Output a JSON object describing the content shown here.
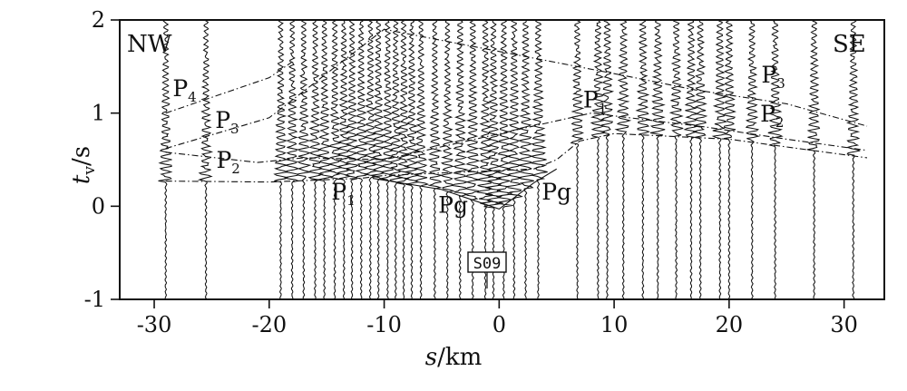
{
  "chart_data": {
    "type": "seismic-section",
    "xlabel": {
      "var": "s",
      "unit": "/km"
    },
    "ylabel": {
      "var": "t",
      "sub": "v",
      "unit": "/s"
    },
    "xlim": [
      -33,
      33.5
    ],
    "ylim": [
      -1,
      2
    ],
    "xticks": [
      -30,
      -20,
      -10,
      0,
      10,
      20,
      30
    ],
    "yticks": [
      2,
      1,
      0,
      -1
    ],
    "corner_labels": {
      "left": "NW",
      "right": "SE"
    },
    "station_label": "S09",
    "station_x": 0,
    "trace_offsets_km": [
      -29,
      -25.5,
      -19,
      -18,
      -17,
      -16,
      -15.2,
      -14.3,
      -13.5,
      -12.8,
      -12,
      -11.2,
      -10.5,
      -9.7,
      -9,
      -8.3,
      -7.6,
      -6.8,
      -5.6,
      -4.5,
      -3.4,
      -2.3,
      -1.2,
      -0.5,
      0.4,
      1.3,
      2.3,
      3.4,
      6.8,
      8.6,
      9.4,
      10.8,
      12.5,
      13.8,
      15.4,
      16.7,
      17.5,
      19.2,
      20,
      22,
      24,
      27.4,
      30.8
    ],
    "phases": [
      {
        "label": "Pg",
        "points": [
          [
            -11,
            0.3
          ],
          [
            -5,
            0.18
          ],
          [
            0,
            -0.03
          ],
          [
            3,
            0.25
          ],
          [
            5,
            0.4
          ]
        ]
      },
      {
        "label": "P1",
        "points": [
          [
            -29,
            0.27
          ],
          [
            -20,
            0.26
          ],
          [
            -12,
            0.3
          ],
          [
            -10,
            0.33
          ],
          [
            3,
            0.4
          ],
          [
            5,
            0.5
          ],
          [
            7,
            0.7
          ],
          [
            10,
            0.78
          ],
          [
            20,
            0.72
          ],
          [
            32,
            0.52
          ]
        ]
      },
      {
        "label": "P2",
        "points": [
          [
            -29,
            0.58
          ],
          [
            -21,
            0.47
          ],
          [
            -17,
            0.52
          ],
          [
            -10,
            0.5
          ],
          [
            8,
            1.0
          ],
          [
            18,
            0.85
          ],
          [
            25,
            0.72
          ],
          [
            32,
            0.6
          ]
        ]
      },
      {
        "label": "P3",
        "points": [
          [
            -29,
            0.62
          ],
          [
            -20,
            0.95
          ],
          [
            -10,
            1.9
          ],
          [
            11,
            1.4
          ],
          [
            17,
            1.25
          ],
          [
            25,
            1.1
          ],
          [
            32,
            0.86
          ]
        ]
      },
      {
        "label": "P4",
        "points": [
          [
            -29,
            1.0
          ],
          [
            -20,
            1.38
          ],
          [
            -18,
            1.55
          ]
        ]
      }
    ],
    "phase_labels": [
      {
        "text": "P",
        "sub": "4",
        "x": -28.4,
        "y": 1.18
      },
      {
        "text": "P",
        "sub": "3",
        "x": -24.7,
        "y": 0.84
      },
      {
        "text": "P",
        "sub": "2",
        "x": -24.6,
        "y": 0.41
      },
      {
        "text": "P",
        "sub": "1",
        "x": -14.6,
        "y": 0.07
      },
      {
        "text": "Pg",
        "sub": "",
        "x": -5.3,
        "y": -0.07
      },
      {
        "text": "Pg",
        "sub": "",
        "x": 3.7,
        "y": 0.07
      },
      {
        "text": "P",
        "sub": "1",
        "x": 7.3,
        "y": 1.06
      },
      {
        "text": "P",
        "sub": "3",
        "x": 22.8,
        "y": 1.33
      },
      {
        "text": "P",
        "sub": "2",
        "x": 22.7,
        "y": 0.91
      }
    ]
  }
}
